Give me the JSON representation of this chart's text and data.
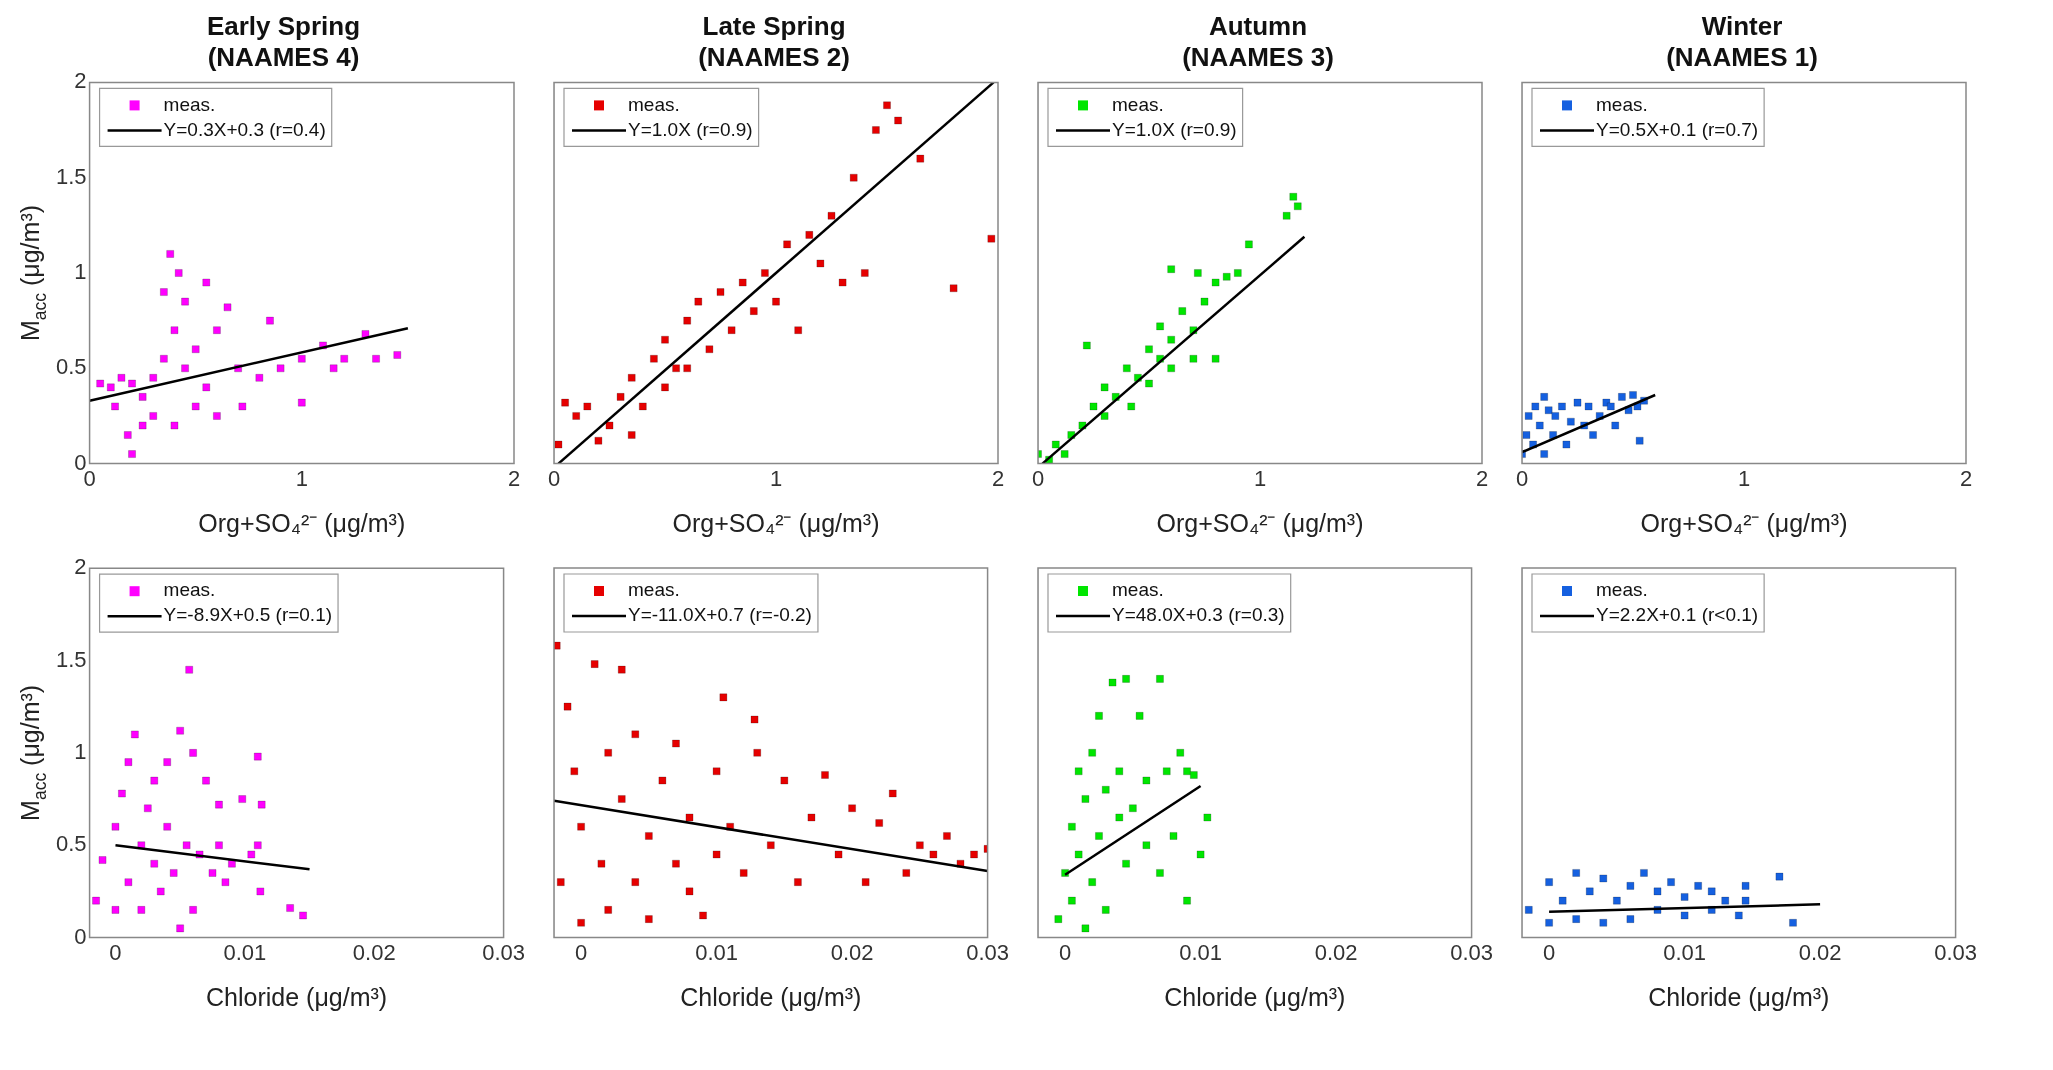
{
  "chart_data": [
    {
      "type": "scatter",
      "title": "Early Spring\n(NAAMES 4)",
      "xlabel": "Org+SO₄²⁻ (μg/m³)",
      "ylabel": "M$_{acc}$ (μg/m³)",
      "xlim": [
        0,
        2
      ],
      "xticks": [
        0,
        1,
        2
      ],
      "ylim": [
        0,
        2
      ],
      "yticks": [
        0,
        0.5,
        1,
        1.5,
        2
      ],
      "legend": "top left",
      "series": [
        {
          "name": "meas.",
          "type": "scatter",
          "marker": "square",
          "color": "#ff00ff",
          "x": [
            0.05,
            0.1,
            0.12,
            0.15,
            0.18,
            0.2,
            0.2,
            0.25,
            0.25,
            0.3,
            0.3,
            0.35,
            0.35,
            0.38,
            0.4,
            0.4,
            0.42,
            0.45,
            0.45,
            0.5,
            0.5,
            0.55,
            0.55,
            0.6,
            0.6,
            0.65,
            0.7,
            0.72,
            0.8,
            0.85,
            0.9,
            1.0,
            1.0,
            1.1,
            1.15,
            1.2,
            1.3,
            1.35,
            1.45
          ],
          "values": [
            0.42,
            0.4,
            0.3,
            0.45,
            0.15,
            0.05,
            0.42,
            0.35,
            0.2,
            0.45,
            0.25,
            0.55,
            0.9,
            1.1,
            0.2,
            0.7,
            1.0,
            0.85,
            0.5,
            0.6,
            0.3,
            0.95,
            0.4,
            0.7,
            0.25,
            0.82,
            0.5,
            0.3,
            0.45,
            0.75,
            0.5,
            0.55,
            0.32,
            0.62,
            0.5,
            0.55,
            0.68,
            0.55,
            0.57
          ]
        },
        {
          "name": "Y=0.3X+0.3 (r=0.4)",
          "type": "line",
          "marker": "none",
          "color": "#000000",
          "x": [
            0,
            1.5
          ],
          "values": [
            0.33,
            0.71
          ]
        }
      ]
    },
    {
      "type": "scatter",
      "title": "Late Spring\n(NAAMES 2)",
      "xlabel": "Org+SO₄²⁻ (μg/m³)",
      "xlim": [
        0,
        2
      ],
      "xticks": [
        0,
        1,
        2
      ],
      "ylim": [
        0,
        2
      ],
      "yticks": [
        0,
        0.5,
        1,
        1.5,
        2
      ],
      "tick_labels": "x",
      "legend": "top left",
      "series": [
        {
          "name": "meas.",
          "type": "scatter",
          "marker": "square",
          "color": "#e60000",
          "x": [
            0.02,
            0.05,
            0.1,
            0.15,
            0.2,
            0.25,
            0.3,
            0.35,
            0.35,
            0.4,
            0.45,
            0.5,
            0.5,
            0.55,
            0.6,
            0.6,
            0.65,
            0.7,
            0.75,
            0.8,
            0.85,
            0.9,
            0.95,
            1.0,
            1.05,
            1.1,
            1.15,
            1.2,
            1.25,
            1.3,
            1.35,
            1.4,
            1.45,
            1.5,
            1.55,
            1.65,
            1.8,
            1.97
          ],
          "values": [
            0.1,
            0.32,
            0.25,
            0.3,
            0.12,
            0.2,
            0.35,
            0.15,
            0.45,
            0.3,
            0.55,
            0.4,
            0.65,
            0.5,
            0.75,
            0.5,
            0.85,
            0.6,
            0.9,
            0.7,
            0.95,
            0.8,
            1.0,
            0.85,
            1.15,
            0.7,
            1.2,
            1.05,
            1.3,
            0.95,
            1.5,
            1.0,
            1.75,
            1.88,
            1.8,
            1.6,
            0.92,
            1.18
          ]
        },
        {
          "name": "Y=1.0X (r=0.9)",
          "type": "line",
          "marker": "none",
          "color": "#000000",
          "x": [
            0.02,
            1.98
          ],
          "values": [
            0,
            2
          ]
        }
      ]
    },
    {
      "type": "scatter",
      "title": "Autumn\n(NAAMES 3)",
      "xlabel": "Org+SO₄²⁻ (μg/m³)",
      "xlim": [
        0,
        2
      ],
      "xticks": [
        0,
        1,
        2
      ],
      "ylim": [
        0,
        2
      ],
      "yticks": [
        0,
        0.5,
        1,
        1.5,
        2
      ],
      "tick_labels": "x",
      "legend": "top left",
      "series": [
        {
          "name": "meas.",
          "type": "scatter",
          "marker": "square",
          "color": "#00e600",
          "x": [
            0.0,
            0.05,
            0.08,
            0.12,
            0.15,
            0.2,
            0.22,
            0.25,
            0.3,
            0.3,
            0.35,
            0.4,
            0.42,
            0.45,
            0.5,
            0.5,
            0.55,
            0.55,
            0.6,
            0.6,
            0.6,
            0.65,
            0.7,
            0.7,
            0.72,
            0.75,
            0.8,
            0.8,
            0.85,
            0.9,
            0.95,
            1.12,
            1.15,
            1.17
          ],
          "values": [
            0.05,
            0.02,
            0.1,
            0.05,
            0.15,
            0.2,
            0.62,
            0.3,
            0.25,
            0.4,
            0.35,
            0.5,
            0.3,
            0.45,
            0.6,
            0.42,
            0.55,
            0.72,
            0.65,
            0.5,
            1.02,
            0.8,
            0.7,
            0.55,
            1.0,
            0.85,
            0.95,
            0.55,
            0.98,
            1.0,
            1.15,
            1.3,
            1.4,
            1.35
          ]
        },
        {
          "name": "Y=1.0X (r=0.9)",
          "type": "line",
          "marker": "none",
          "color": "#000000",
          "x": [
            0.02,
            1.2
          ],
          "values": [
            0,
            1.19
          ]
        }
      ]
    },
    {
      "type": "scatter",
      "title": "Winter\n(NAAMES 1)",
      "xlabel": "Org+SO₄²⁻ (μg/m³)",
      "xlim": [
        0,
        2
      ],
      "xticks": [
        0,
        1,
        2
      ],
      "ylim": [
        0,
        2
      ],
      "yticks": [
        0,
        0.5,
        1,
        1.5,
        2
      ],
      "tick_labels": "x",
      "legend": "top left",
      "series": [
        {
          "name": "meas.",
          "type": "scatter",
          "marker": "square",
          "color": "#1560e0",
          "x": [
            0.0,
            0.02,
            0.03,
            0.05,
            0.06,
            0.08,
            0.1,
            0.1,
            0.12,
            0.14,
            0.15,
            0.18,
            0.2,
            0.22,
            0.25,
            0.28,
            0.3,
            0.32,
            0.35,
            0.38,
            0.4,
            0.42,
            0.45,
            0.48,
            0.5,
            0.52,
            0.53,
            0.55
          ],
          "values": [
            0.05,
            0.15,
            0.25,
            0.1,
            0.3,
            0.2,
            0.05,
            0.35,
            0.28,
            0.15,
            0.25,
            0.3,
            0.1,
            0.22,
            0.32,
            0.2,
            0.3,
            0.15,
            0.25,
            0.32,
            0.3,
            0.2,
            0.35,
            0.28,
            0.36,
            0.3,
            0.12,
            0.33
          ]
        },
        {
          "name": "Y=0.5X+0.1 (r=0.7)",
          "type": "line",
          "marker": "none",
          "color": "#000000",
          "x": [
            0,
            0.6
          ],
          "values": [
            0.06,
            0.36
          ]
        }
      ]
    },
    {
      "type": "scatter",
      "xlabel": "Chloride (μg/m³)",
      "ylabel": "M$_{acc}$ (μg/m³)",
      "xlim": [
        -0.002,
        0.03
      ],
      "xticks": [
        0,
        0.01,
        0.02,
        0.03
      ],
      "ylim": [
        0,
        2
      ],
      "yticks": [
        0,
        0.5,
        1,
        1.5,
        2
      ],
      "legend": "top left",
      "series": [
        {
          "name": "meas.",
          "type": "scatter",
          "marker": "square",
          "color": "#ff00ff",
          "x": [
            -0.0015,
            -0.001,
            0,
            0,
            0.0005,
            0.001,
            0.001,
            0.0015,
            0.002,
            0.002,
            0.0025,
            0.003,
            0.003,
            0.0035,
            0.004,
            0.004,
            0.0045,
            0.005,
            0.005,
            0.0055,
            0.0057,
            0.006,
            0.006,
            0.0065,
            0.007,
            0.0075,
            0.008,
            0.008,
            0.0085,
            0.009,
            0.0098,
            0.0105,
            0.011,
            0.011,
            0.0112,
            0.0113,
            0.0135,
            0.0145
          ],
          "values": [
            0.2,
            0.42,
            0.15,
            0.6,
            0.78,
            0.3,
            0.95,
            1.1,
            0.5,
            0.15,
            0.7,
            0.4,
            0.85,
            0.25,
            0.6,
            0.95,
            0.35,
            0.05,
            1.12,
            0.5,
            1.45,
            0.15,
            1.0,
            0.45,
            0.85,
            0.35,
            0.72,
            0.5,
            0.3,
            0.4,
            0.75,
            0.45,
            0.98,
            0.5,
            0.25,
            0.72,
            0.16,
            0.12
          ]
        },
        {
          "name": "Y=-8.9X+0.5 (r=0.1)",
          "type": "line",
          "marker": "none",
          "color": "#000000",
          "x": [
            0,
            0.015
          ],
          "values": [
            0.5,
            0.37
          ]
        }
      ]
    },
    {
      "type": "scatter",
      "xlabel": "Chloride (μg/m³)",
      "xlim": [
        -0.002,
        0.03
      ],
      "xticks": [
        0,
        0.01,
        0.02,
        0.03
      ],
      "ylim": [
        0,
        2
      ],
      "yticks": [
        0,
        0.5,
        1,
        1.5,
        2
      ],
      "tick_labels": "x",
      "legend": "top left",
      "series": [
        {
          "name": "meas.",
          "type": "scatter",
          "marker": "square",
          "color": "#e60000",
          "x": [
            -0.0018,
            -0.0015,
            -0.001,
            -0.0005,
            0,
            0,
            0.001,
            0.0015,
            0.002,
            0.002,
            0.003,
            0.003,
            0.004,
            0.004,
            0.005,
            0.005,
            0.006,
            0.007,
            0.007,
            0.008,
            0.008,
            0.009,
            0.01,
            0.01,
            0.0105,
            0.011,
            0.012,
            0.013,
            0.0128,
            0.014,
            0.015,
            0.016,
            0.017,
            0.018,
            0.019,
            0.02,
            0.021,
            0.022,
            0.023,
            0.024,
            0.025,
            0.026,
            0.027,
            0.028,
            0.029,
            0.03
          ],
          "values": [
            1.58,
            0.3,
            1.25,
            0.9,
            0.08,
            0.6,
            1.48,
            0.4,
            1.0,
            0.15,
            0.75,
            1.45,
            0.3,
            1.1,
            0.55,
            0.1,
            0.85,
            0.4,
            1.05,
            0.25,
            0.65,
            0.12,
            0.9,
            0.45,
            1.3,
            0.6,
            0.35,
            1.0,
            1.18,
            0.5,
            0.85,
            0.3,
            0.65,
            0.88,
            0.45,
            0.7,
            0.3,
            0.62,
            0.78,
            0.35,
            0.5,
            0.45,
            0.55,
            0.4,
            0.45,
            0.48
          ]
        },
        {
          "name": "Y=-11.0X+0.7 (r=-0.2)",
          "type": "line",
          "marker": "none",
          "color": "#000000",
          "x": [
            -0.002,
            0.03
          ],
          "values": [
            0.74,
            0.36
          ]
        }
      ]
    },
    {
      "type": "scatter",
      "xlabel": "Chloride (μg/m³)",
      "xlim": [
        -0.002,
        0.03
      ],
      "xticks": [
        0,
        0.01,
        0.02,
        0.03
      ],
      "ylim": [
        0,
        2
      ],
      "yticks": [
        0,
        0.5,
        1,
        1.5,
        2
      ],
      "tick_labels": "x",
      "legend": "top left",
      "series": [
        {
          "name": "meas.",
          "type": "scatter",
          "marker": "square",
          "color": "#00e600",
          "x": [
            -0.0005,
            0,
            0.0005,
            0.0005,
            0.001,
            0.001,
            0.0015,
            0.0015,
            0.002,
            0.002,
            0.0025,
            0.0025,
            0.003,
            0.003,
            0.0035,
            0.004,
            0.004,
            0.0045,
            0.0045,
            0.005,
            0.0055,
            0.006,
            0.006,
            0.007,
            0.007,
            0.0075,
            0.008,
            0.0085,
            0.009,
            0.009,
            0.0095,
            0.01,
            0.0105
          ],
          "values": [
            0.1,
            0.35,
            0.2,
            0.6,
            0.9,
            0.45,
            0.05,
            0.75,
            1.0,
            0.3,
            0.55,
            1.2,
            0.8,
            0.15,
            1.38,
            0.65,
            0.9,
            0.4,
            1.4,
            0.7,
            1.2,
            0.5,
            0.85,
            0.35,
            1.4,
            0.9,
            0.55,
            1.0,
            0.2,
            0.9,
            0.88,
            0.45,
            0.65
          ]
        },
        {
          "name": "Y=48.0X+0.3 (r=0.3)",
          "type": "line",
          "marker": "none",
          "color": "#000000",
          "x": [
            0,
            0.01
          ],
          "values": [
            0.34,
            0.82
          ]
        }
      ]
    },
    {
      "type": "scatter",
      "xlabel": "Chloride (μg/m³)",
      "xlim": [
        -0.002,
        0.03
      ],
      "xticks": [
        0,
        0.01,
        0.02,
        0.03
      ],
      "ylim": [
        0,
        2
      ],
      "yticks": [
        0,
        0.5,
        1,
        1.5,
        2
      ],
      "tick_labels": "x",
      "legend": "top left",
      "series": [
        {
          "name": "meas.",
          "type": "scatter",
          "marker": "square",
          "color": "#1560e0",
          "x": [
            -0.0015,
            0,
            0,
            0.001,
            0.002,
            0.002,
            0.003,
            0.004,
            0.004,
            0.005,
            0.006,
            0.006,
            0.007,
            0.008,
            0.008,
            0.009,
            0.01,
            0.01,
            0.011,
            0.012,
            0.012,
            0.013,
            0.014,
            0.0145,
            0.0145,
            0.017,
            0.018
          ],
          "values": [
            0.15,
            0.08,
            0.3,
            0.2,
            0.35,
            0.1,
            0.25,
            0.32,
            0.08,
            0.2,
            0.28,
            0.1,
            0.35,
            0.15,
            0.25,
            0.3,
            0.12,
            0.22,
            0.28,
            0.15,
            0.25,
            0.2,
            0.12,
            0.2,
            0.28,
            0.33,
            0.08
          ]
        },
        {
          "name": "Y=2.2X+0.1 (r<0.1)",
          "type": "line",
          "marker": "none",
          "color": "#000000",
          "x": [
            0,
            0.02
          ],
          "values": [
            0.14,
            0.18
          ]
        }
      ]
    }
  ]
}
